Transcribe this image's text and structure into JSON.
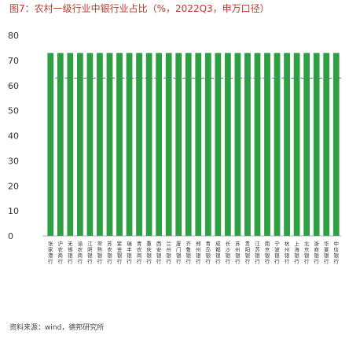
{
  "title": "图7：农村一级行业中银行业占比（%，2022Q3，申万口径）",
  "source": "资料来源：wind，德邦研究所",
  "chart_data": {
    "type": "bar",
    "title": "图7：农村一级行业中银行业占比（%，2022Q3，申万口径）",
    "xlabel": "",
    "ylabel": "",
    "ylim": [
      0,
      80
    ],
    "yticks": [
      0,
      10,
      20,
      30,
      40,
      50,
      60,
      70,
      80
    ],
    "grid": false,
    "categories": [
      "张家港行",
      "沪农商行",
      "无锡银行",
      "渝农商行",
      "江阴银行",
      "常熟银行",
      "苏农银行",
      "紫金银行",
      "瑞丰银行",
      "青农商行",
      "重庆银行",
      "西安银行",
      "兰州银行",
      "厦门银行",
      "齐鲁银行",
      "郑州银行",
      "青岛银行",
      "成都银行",
      "长沙银行",
      "苏州银行",
      "贵阳银行",
      "江苏银行",
      "南京银行",
      "宁波银行",
      "杭州银行",
      "上海银行",
      "北京银行",
      "浙商银行",
      "华夏银行",
      "中信银行"
    ],
    "values": [
      73,
      73,
      73,
      73,
      73,
      73,
      73,
      73,
      73,
      73,
      73,
      73,
      73,
      73,
      73,
      73,
      73,
      73,
      73,
      73,
      73,
      73,
      73,
      73,
      73,
      73,
      73,
      73,
      73,
      73
    ],
    "reference_line": 63,
    "bar_color": "#2ea043",
    "reference_color": "#5b6fd6"
  }
}
